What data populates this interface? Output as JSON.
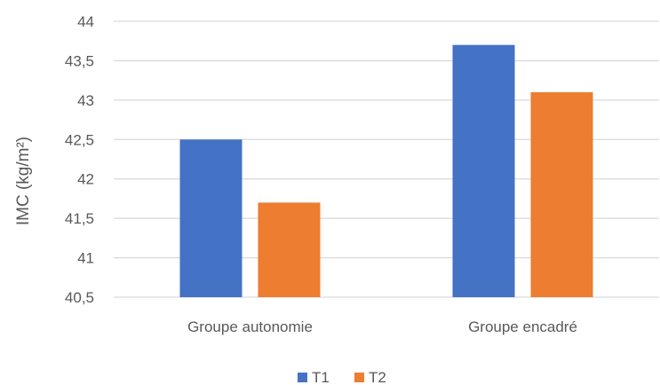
{
  "chart_data": {
    "type": "bar",
    "title": "",
    "xlabel": "",
    "ylabel": "IMC (kg/m²)",
    "ylim": [
      40.5,
      44
    ],
    "y_ticks": [
      {
        "value": 40.5,
        "label": "40,5"
      },
      {
        "value": 41,
        "label": "41"
      },
      {
        "value": 41.5,
        "label": "41,5"
      },
      {
        "value": 42,
        "label": "42"
      },
      {
        "value": 42.5,
        "label": "42,5"
      },
      {
        "value": 43,
        "label": "43"
      },
      {
        "value": 43.5,
        "label": "43,5"
      },
      {
        "value": 44,
        "label": "44"
      }
    ],
    "grid": true,
    "legend_position": "bottom",
    "categories": [
      "Groupe autonomie",
      "Groupe encadré"
    ],
    "series": [
      {
        "name": "T1",
        "color": "#4472C4",
        "values": [
          42.5,
          43.7
        ]
      },
      {
        "name": "T2",
        "color": "#ED7D31",
        "values": [
          41.7,
          43.1
        ]
      }
    ]
  }
}
